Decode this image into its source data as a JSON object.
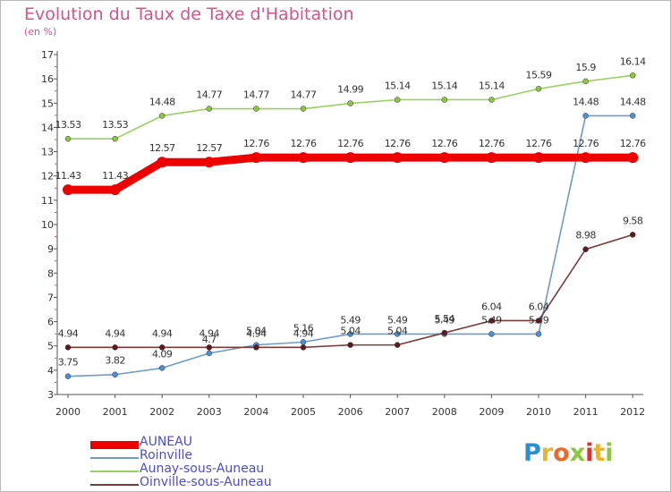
{
  "title": "Evolution du Taux de Taxe d'Habitation",
  "subtitle": "(en %)",
  "logo": {
    "text": "Proxiti",
    "colors": [
      "#2d8fd0",
      "#e9b42c",
      "#e96a2c",
      "#8cc63f",
      "#e0312c"
    ]
  },
  "chart_data": {
    "type": "line",
    "x": [
      "2000",
      "2001",
      "2002",
      "2003",
      "2004",
      "2005",
      "2006",
      "2007",
      "2008",
      "2009",
      "2010",
      "2011",
      "2012"
    ],
    "ylim": [
      3,
      17
    ],
    "yticks": [
      "3",
      "4",
      "5",
      "6",
      "7",
      "8",
      "9",
      "10",
      "11",
      "12",
      "13",
      "14",
      "15",
      "16",
      "17"
    ],
    "grid": false,
    "legend_position": "bottom-left",
    "series": [
      {
        "name": "AUNEAU",
        "color": "#ee0000",
        "values": [
          11.43,
          11.43,
          12.57,
          12.57,
          12.76,
          12.76,
          12.76,
          12.76,
          12.76,
          12.76,
          12.76,
          12.76,
          12.76
        ],
        "labels": [
          "11.43",
          "11.43",
          "12.57",
          "12.57",
          "12.76",
          "12.76",
          "12.76",
          "12.76",
          "12.76",
          "12.76",
          "12.76",
          "12.76",
          "12.76"
        ]
      },
      {
        "name": "Roinville",
        "color": "#6f9bc8",
        "marker": "#4a90d9",
        "values": [
          3.75,
          3.82,
          4.09,
          4.7,
          5.04,
          5.16,
          5.49,
          5.49,
          5.49,
          5.49,
          5.49,
          14.48,
          14.48
        ],
        "labels": [
          "3.75",
          "3.82",
          "4.09",
          "4.7",
          "5.04",
          "5.16",
          "5.49",
          "5.49",
          "5.49",
          "5.49",
          "5.49",
          "14.48",
          "14.48"
        ]
      },
      {
        "name": "Aunay-sous-Auneau",
        "color": "#98d160",
        "marker": "#8cc63f",
        "values": [
          13.53,
          13.53,
          14.48,
          14.77,
          14.77,
          14.77,
          14.99,
          15.14,
          15.14,
          15.14,
          15.59,
          15.9,
          16.14
        ],
        "labels": [
          "13.53",
          "13.53",
          "14.48",
          "14.77",
          "14.77",
          "14.77",
          "14.99",
          "15.14",
          "15.14",
          "15.14",
          "15.59",
          "15.9",
          "16.14"
        ]
      },
      {
        "name": "Oinville-sous-Auneau",
        "color": "#7a3a3a",
        "marker": "#5e1a1a",
        "values": [
          4.94,
          4.94,
          4.94,
          4.94,
          4.94,
          4.94,
          5.04,
          5.04,
          5.54,
          6.04,
          6.04,
          8.98,
          9.58
        ],
        "labels": [
          "4.94",
          "4.94",
          "4.94",
          "4.94",
          "4.94",
          "4.94",
          "5.04",
          "5.04",
          "5.54",
          "6.04",
          "6.04",
          "8.98",
          "9.58"
        ]
      }
    ]
  }
}
